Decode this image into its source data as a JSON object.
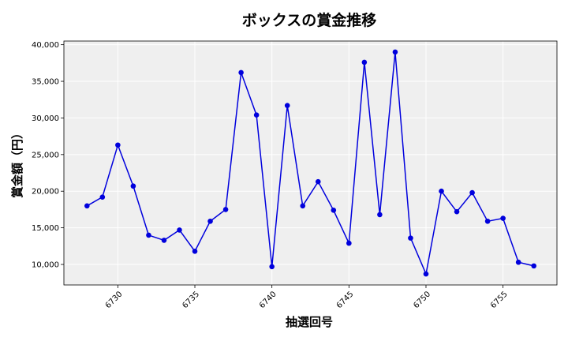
{
  "chart_data": {
    "type": "line",
    "title": "ボックスの賞金推移",
    "xlabel": "抽選回号",
    "ylabel": "賞金額（円）",
    "x": [
      6728,
      6729,
      6730,
      6731,
      6732,
      6733,
      6734,
      6735,
      6736,
      6737,
      6738,
      6739,
      6740,
      6741,
      6742,
      6743,
      6744,
      6745,
      6746,
      6747,
      6748,
      6749,
      6750,
      6751,
      6752,
      6753,
      6754,
      6755,
      6756,
      6757
    ],
    "series": [
      {
        "values": [
          18000,
          19200,
          26300,
          20700,
          14000,
          13300,
          14700,
          11800,
          15900,
          17500,
          36200,
          30400,
          9700,
          31700,
          18000,
          21300,
          17400,
          12900,
          37600,
          16800,
          39000,
          13600,
          8700,
          20000,
          17200,
          19800,
          15900,
          16300,
          10300,
          9800
        ],
        "color": "#0000dd"
      }
    ],
    "xlim": [
      6726.5,
      6758.5
    ],
    "ylim": [
      7200,
      40500
    ],
    "xticks": [
      6730,
      6735,
      6740,
      6745,
      6750,
      6755
    ],
    "xtick_labels": [
      "6730",
      "6735",
      "6740",
      "6745",
      "6750",
      "6755"
    ],
    "yticks": [
      10000,
      15000,
      20000,
      25000,
      30000,
      35000,
      40000
    ],
    "ytick_labels": [
      "10,000",
      "15,000",
      "20,000",
      "25,000",
      "30,000",
      "35,000",
      "40,000"
    ],
    "grid": true,
    "background": "#efefef",
    "legend": "none"
  }
}
